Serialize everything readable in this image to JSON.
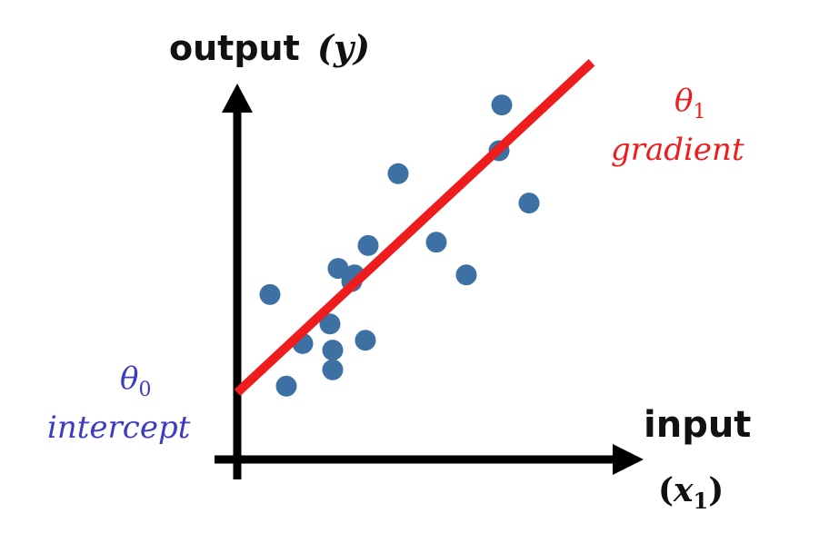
{
  "y_axis": {
    "label": "output",
    "symbol": "(y)"
  },
  "x_axis": {
    "label": "input",
    "symbol_open": "(",
    "symbol_var": "x",
    "symbol_sub": "1",
    "symbol_close": ")"
  },
  "gradient": {
    "symbol": "θ",
    "subscript": "1",
    "label": "gradient",
    "color": "#ee1c1c"
  },
  "intercept": {
    "symbol": "θ",
    "subscript": "0",
    "label": "intercept",
    "color": "#3b3bc4"
  },
  "colors": {
    "axis": "#000000",
    "points": "#3d71a3",
    "line": "#ee1c1c"
  },
  "points": [
    [
      0.12,
      0.31
    ],
    [
      0.18,
      0.03
    ],
    [
      0.24,
      0.16
    ],
    [
      0.34,
      0.22
    ],
    [
      0.35,
      0.14
    ],
    [
      0.35,
      0.08
    ],
    [
      0.37,
      0.39
    ],
    [
      0.42,
      0.35
    ],
    [
      0.43,
      0.37
    ],
    [
      0.47,
      0.17
    ],
    [
      0.48,
      0.46
    ],
    [
      0.59,
      0.68
    ],
    [
      0.73,
      0.47
    ],
    [
      0.84,
      0.37
    ],
    [
      0.96,
      0.75
    ],
    [
      0.97,
      0.89
    ],
    [
      1.07,
      0.59
    ]
  ],
  "regression_line": {
    "x": [
      0.0,
      1.3
    ],
    "y": [
      0.01,
      1.02
    ]
  }
}
